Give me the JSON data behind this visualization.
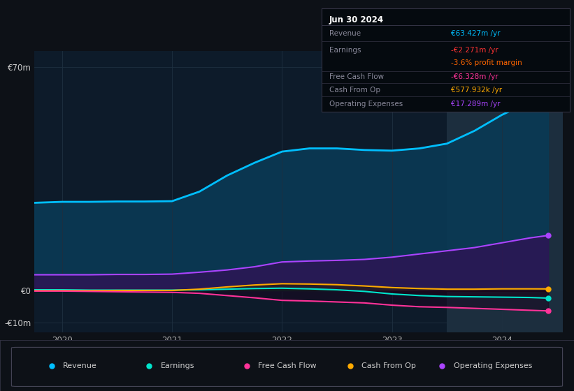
{
  "background_color": "#0d1117",
  "plot_bg_color": "#0d1b2a",
  "x_data": [
    2019.75,
    2020.0,
    2020.25,
    2020.5,
    2020.75,
    2021.0,
    2021.25,
    2021.5,
    2021.75,
    2022.0,
    2022.25,
    2022.5,
    2022.75,
    2023.0,
    2023.25,
    2023.5,
    2023.75,
    2024.0,
    2024.25,
    2024.42
  ],
  "revenue_data": [
    27.5,
    27.8,
    27.8,
    27.9,
    27.9,
    28.0,
    31.0,
    36.0,
    40.0,
    43.5,
    44.5,
    44.5,
    44.0,
    43.8,
    44.5,
    46.0,
    50.0,
    55.0,
    59.0,
    63.4
  ],
  "earnings_data": [
    0.3,
    0.3,
    0.2,
    0.2,
    0.2,
    0.2,
    0.3,
    0.5,
    0.7,
    0.8,
    0.6,
    0.3,
    -0.2,
    -1.0,
    -1.5,
    -1.8,
    -1.9,
    -2.0,
    -2.1,
    -2.3
  ],
  "fcf_data": [
    -0.1,
    -0.1,
    -0.2,
    -0.3,
    -0.4,
    -0.5,
    -0.8,
    -1.5,
    -2.2,
    -3.0,
    -3.2,
    -3.5,
    -3.8,
    -4.5,
    -5.0,
    -5.2,
    -5.5,
    -5.8,
    -6.1,
    -6.3
  ],
  "cash_op_data": [
    0.05,
    0.05,
    0.05,
    0.1,
    0.1,
    0.1,
    0.5,
    1.2,
    1.8,
    2.2,
    2.1,
    1.9,
    1.5,
    1.0,
    0.7,
    0.5,
    0.5,
    0.6,
    0.6,
    0.58
  ],
  "op_exp_data": [
    5.0,
    5.0,
    5.0,
    5.1,
    5.1,
    5.2,
    5.8,
    6.5,
    7.5,
    9.0,
    9.3,
    9.5,
    9.8,
    10.5,
    11.5,
    12.5,
    13.5,
    15.0,
    16.5,
    17.3
  ],
  "revenue_color": "#00bfff",
  "earnings_color": "#00e5cc",
  "fcf_color": "#ff3399",
  "cash_op_color": "#ffaa00",
  "op_exp_color": "#aa44ff",
  "revenue_fill": "#0a3a55",
  "op_exp_fill": "#2d1555",
  "highlight_x_start": 2023.5,
  "highlight_x_end": 2024.55,
  "ylim": [
    -13,
    75
  ],
  "xlim": [
    2019.75,
    2024.55
  ],
  "yticks": [
    70,
    0,
    -10
  ],
  "ytick_labels": [
    "€70m",
    "€0",
    "-€10m"
  ],
  "xticks": [
    2020,
    2021,
    2022,
    2023,
    2024
  ],
  "xtick_labels": [
    "2020",
    "2021",
    "2022",
    "2023",
    "2024"
  ],
  "info_box": {
    "title": "Jun 30 2024",
    "rows": [
      {
        "label": "Revenue",
        "value": "€63.427m /yr",
        "value_color": "#00bfff",
        "divider_after": true
      },
      {
        "label": "Earnings",
        "value": "-€2.271m /yr",
        "value_color": "#ff3333",
        "divider_after": false
      },
      {
        "label": "",
        "value": "-3.6% profit margin",
        "value_color": "#ff6600",
        "divider_after": true
      },
      {
        "label": "Free Cash Flow",
        "value": "-€6.328m /yr",
        "value_color": "#ff3399",
        "divider_after": true
      },
      {
        "label": "Cash From Op",
        "value": "€577.932k /yr",
        "value_color": "#ffaa00",
        "divider_after": true
      },
      {
        "label": "Operating Expenses",
        "value": "€17.289m /yr",
        "value_color": "#aa44ff",
        "divider_after": false
      }
    ]
  },
  "legend": [
    {
      "label": "Revenue",
      "color": "#00bfff"
    },
    {
      "label": "Earnings",
      "color": "#00e5cc"
    },
    {
      "label": "Free Cash Flow",
      "color": "#ff3399"
    },
    {
      "label": "Cash From Op",
      "color": "#ffaa00"
    },
    {
      "label": "Operating Expenses",
      "color": "#aa44ff"
    }
  ]
}
